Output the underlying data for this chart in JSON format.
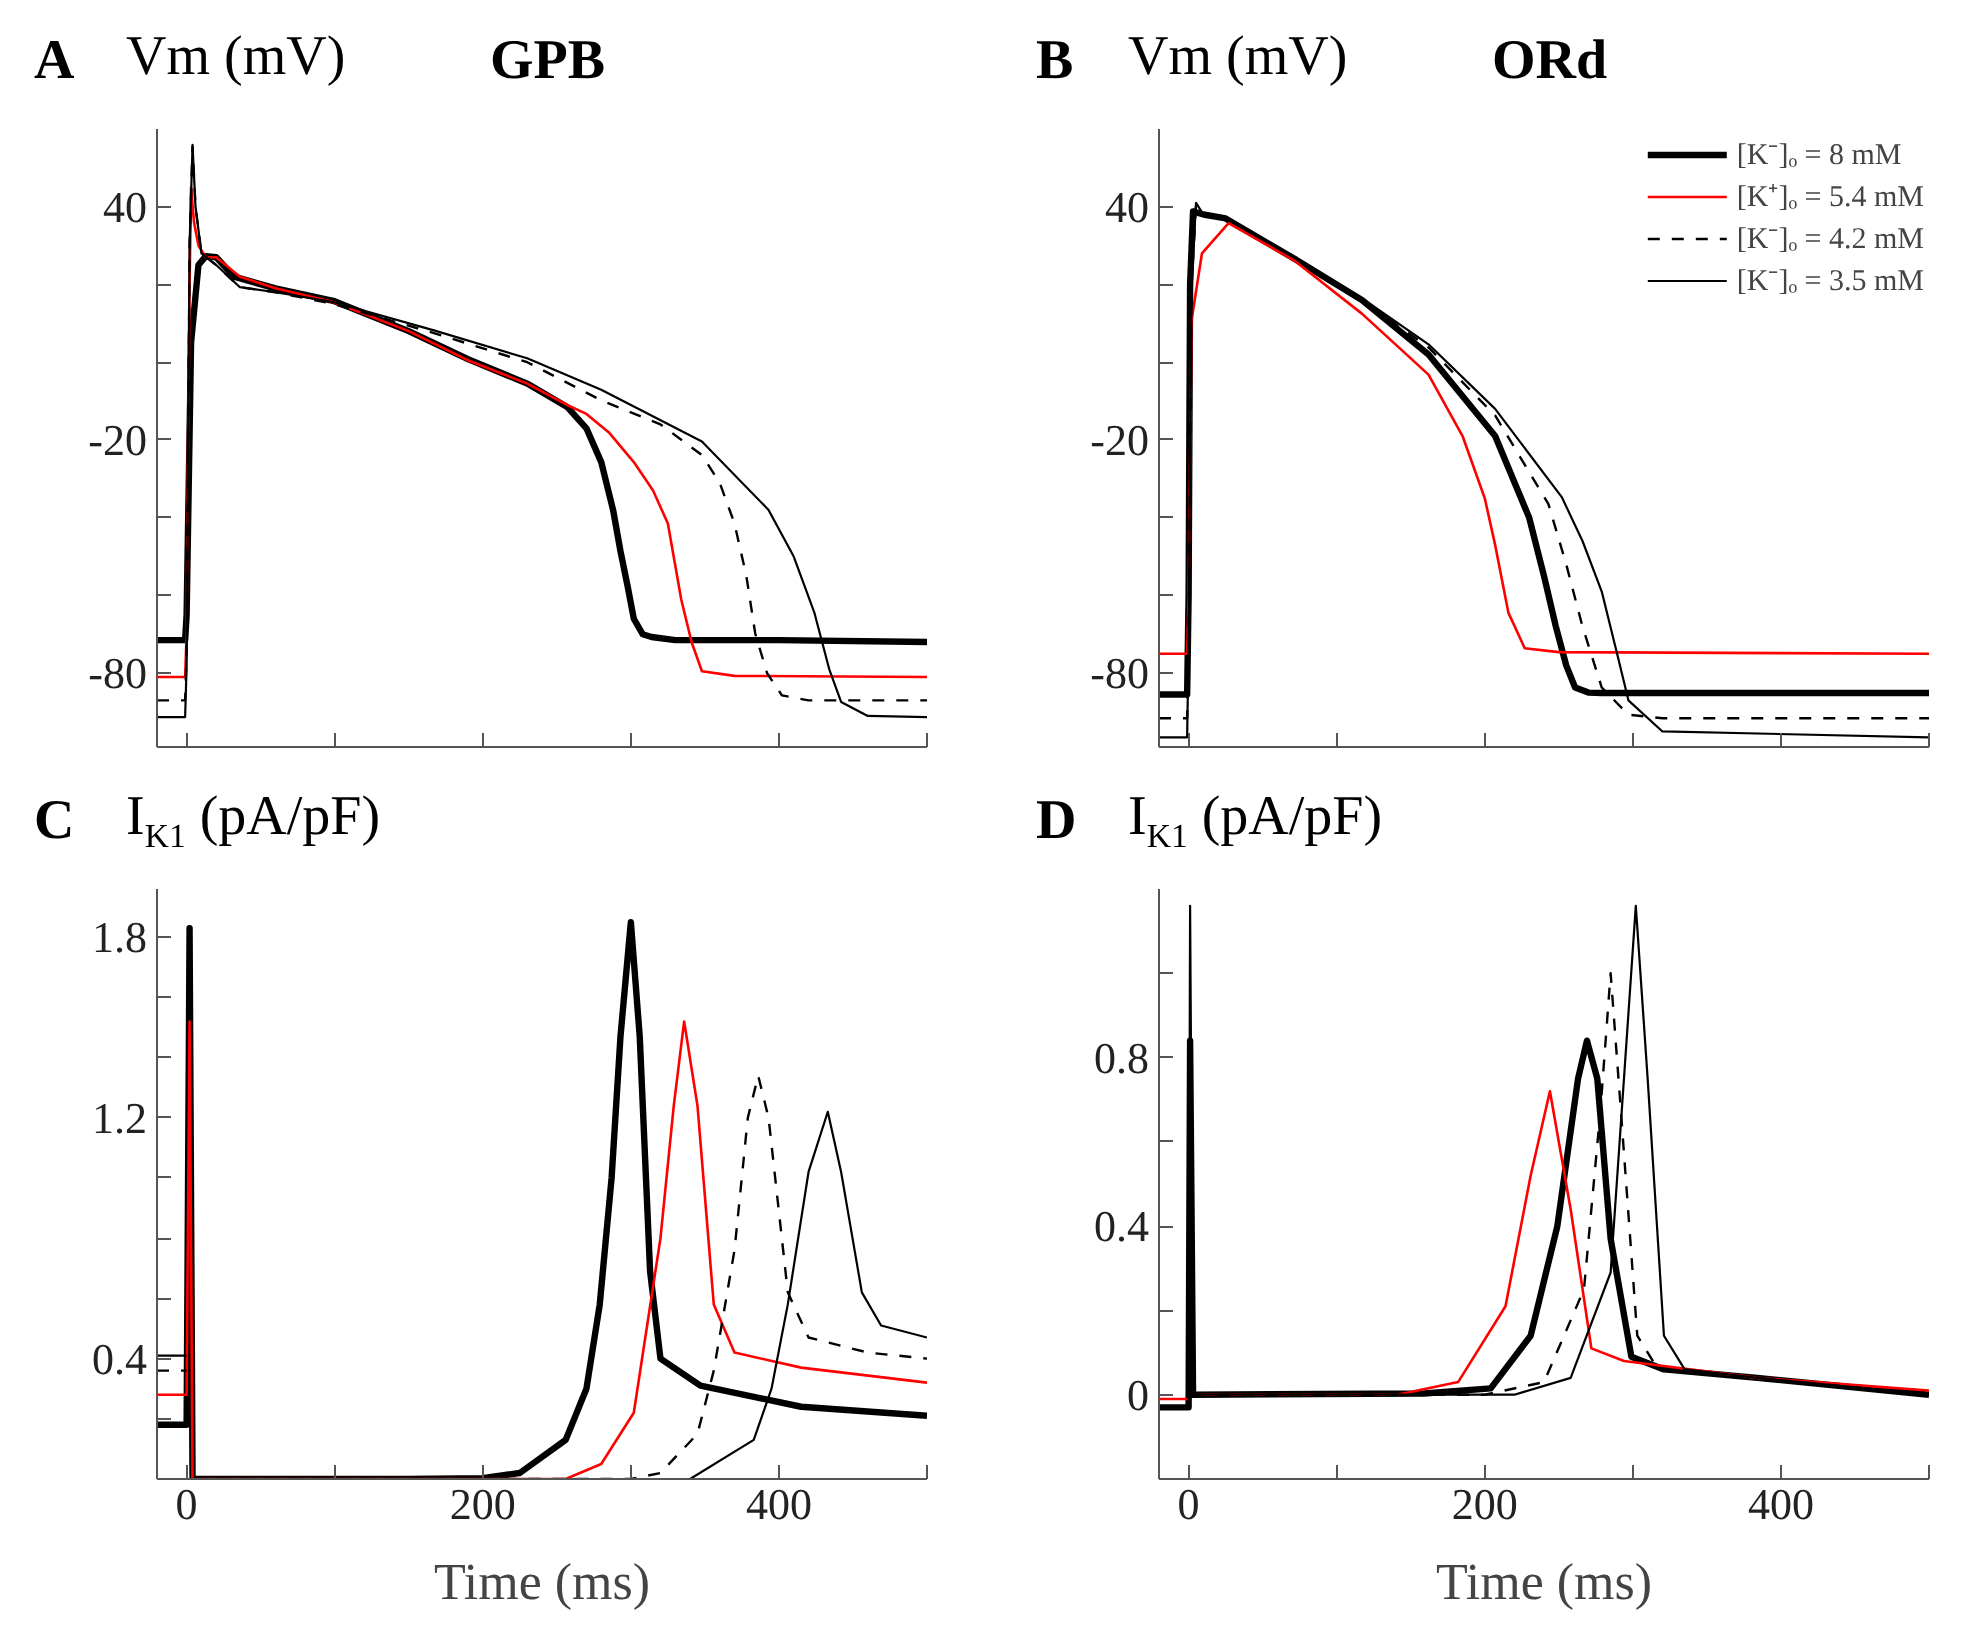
{
  "chart_data": [
    {
      "type": "line",
      "title": "GPB",
      "ylabel": "Vm (mV)",
      "annotations": [
        "A"
      ],
      "xlim": [
        -20,
        500
      ],
      "ylim": [
        -99,
        60
      ],
      "tick_labels": "y",
      "grid": false,
      "legend": false,
      "xticks": [
        {
          "value": 0,
          "label": null
        },
        {
          "value": 100,
          "label": null
        },
        {
          "value": 200,
          "label": null
        },
        {
          "value": 300,
          "label": null
        },
        {
          "value": 400,
          "label": null
        },
        {
          "value": 500,
          "label": null
        }
      ],
      "yticks": [
        -80,
        {
          "value": -60,
          "label": null
        },
        {
          "value": -40,
          "label": null
        },
        -20,
        {
          "value": 0,
          "label": null
        },
        {
          "value": 20,
          "label": null
        },
        40
      ],
      "series": [
        {
          "color": "#000000",
          "line_style": "solid",
          "x": [
            -20,
            -1,
            0,
            3,
            8,
            13,
            20,
            32,
            60,
            99,
            150,
            190,
            230,
            257,
            270,
            280,
            288,
            293,
            298,
            302,
            308,
            314,
            330,
            400,
            500
          ],
          "values": [
            -71.5,
            -71.5,
            -65,
            5,
            25,
            27.3,
            27,
            22,
            19,
            15.8,
            8,
            0.8,
            -5.5,
            -11.5,
            -17,
            -25.7,
            -38,
            -48.6,
            -58,
            -66,
            -70,
            -70.7,
            -71.5,
            -71.5,
            -72
          ]
        },
        {
          "color": "#ff0000",
          "line_style": "solid",
          "x": [
            -20,
            -1,
            0,
            1,
            2,
            3,
            5,
            8,
            13,
            20,
            36,
            60,
            99,
            150,
            190,
            230,
            257,
            270,
            285,
            302,
            315,
            325,
            334,
            341,
            348,
            370,
            500
          ],
          "values": [
            -81,
            -81,
            -70,
            -20,
            20,
            45,
            36,
            30,
            27,
            27,
            22,
            19,
            15.5,
            8,
            0.5,
            -5.5,
            -11,
            -13.3,
            -18,
            -25.7,
            -33,
            -41.5,
            -61,
            -72,
            -79.5,
            -80.7,
            -81
          ]
        },
        {
          "color": "#000000",
          "line_style": "dashed",
          "x": [
            -20,
            -1,
            0,
            2,
            4,
            6,
            10,
            20,
            36,
            60,
            99,
            167,
            230,
            280,
            320,
            348,
            360,
            370,
            378,
            384,
            392,
            402,
            420,
            500
          ],
          "values": [
            -87,
            -87,
            -75,
            30,
            55.5,
            40,
            28,
            25,
            19.3,
            18,
            15,
            7.5,
            0,
            -9.8,
            -16,
            -23.9,
            -31,
            -41.5,
            -55,
            -69.8,
            -80,
            -85.7,
            -87,
            -87
          ]
        },
        {
          "color": "#000000",
          "line_style": "solid",
          "x": [
            -20,
            -1,
            0,
            2,
            4,
            6,
            10,
            20,
            36,
            60,
            99,
            167,
            230,
            280,
            348,
            393,
            410,
            424,
            434,
            442,
            460,
            500
          ],
          "values": [
            -91.3,
            -91.3,
            -78,
            30,
            55.9,
            40,
            28,
            25,
            19.3,
            18,
            15.5,
            8.2,
            1,
            -7.1,
            -20.4,
            -38,
            -50,
            -64.5,
            -79,
            -87.4,
            -91,
            -91.3
          ]
        }
      ]
    },
    {
      "type": "line",
      "title": "ORd",
      "ylabel": "Vm (mV)",
      "annotations": [
        "B"
      ],
      "xlim": [
        -20,
        500
      ],
      "ylim": [
        -99,
        60
      ],
      "tick_labels": "y",
      "grid": false,
      "legend": "top right",
      "xticks": [
        {
          "value": 0,
          "label": null
        },
        {
          "value": 100,
          "label": null
        },
        {
          "value": 200,
          "label": null
        },
        {
          "value": 300,
          "label": null
        },
        {
          "value": 400,
          "label": null
        },
        {
          "value": 500,
          "label": null
        }
      ],
      "yticks": [
        -80,
        {
          "value": -60,
          "label": null
        },
        {
          "value": -40,
          "label": null
        },
        -20,
        {
          "value": 0,
          "label": null
        },
        {
          "value": 20,
          "label": null
        },
        40
      ],
      "series": [
        {
          "name": "[K⁻]ₒ = 8 mM",
          "color": "#000000",
          "line_style": "solid",
          "x": [
            -20,
            -1,
            0,
            1,
            3,
            10,
            25,
            72,
            117,
            162,
            207,
            230,
            240,
            248,
            255,
            261,
            270,
            279,
            500
          ],
          "values": [
            -85.5,
            -85.5,
            -60,
            20,
            38.8,
            38,
            37,
            26.5,
            16,
            2,
            -19,
            -40,
            -55,
            -68,
            -78,
            -83.7,
            -85,
            -85.1,
            -85.1
          ]
        },
        {
          "name": "[K⁺]ₒ = 5.4 mM",
          "color": "#ff0000",
          "line_style": "solid",
          "x": [
            -20,
            -1,
            0,
            2,
            9,
            27,
            72,
            117,
            162,
            185,
            200,
            207,
            216,
            227,
            250,
            500
          ],
          "values": [
            -75,
            -75,
            -60,
            10.8,
            28,
            35.8,
            26,
            12.5,
            -3.2,
            -19,
            -35,
            -47,
            -64.5,
            -73.6,
            -74.6,
            -75
          ]
        },
        {
          "name": "[K⁻]ₒ = 4.2 mM",
          "color": "#000000",
          "line_style": "dashed",
          "x": [
            -20,
            -1,
            0,
            2,
            5,
            10,
            25,
            72,
            117,
            162,
            207,
            243,
            255,
            266,
            279,
            297,
            320,
            500
          ],
          "values": [
            -91.6,
            -91.6,
            -70,
            20,
            40.5,
            38,
            37,
            27,
            16,
            3.8,
            -13.7,
            -36.5,
            -52,
            -68,
            -83.7,
            -90.7,
            -91.6,
            -91.6
          ]
        },
        {
          "name": "[K⁻]ₒ = 3.5 mM",
          "color": "#000000",
          "line_style": "solid",
          "x": [
            -20,
            -1,
            0,
            2,
            5,
            10,
            25,
            72,
            117,
            162,
            207,
            252,
            266,
            279,
            290,
            297,
            320,
            500
          ],
          "values": [
            -96.5,
            -96.5,
            -72,
            20,
            41,
            38,
            37,
            27,
            16.5,
            4.6,
            -12,
            -34.7,
            -46,
            -59,
            -76,
            -87,
            -95,
            -96.5
          ]
        }
      ]
    },
    {
      "type": "line",
      "ylabel": "I$_{K1}$ (pA/pF)",
      "xlabel": "Time (ms)",
      "annotations": [
        "C"
      ],
      "xlim": [
        -20,
        500
      ],
      "ylim": [
        0,
        1.96
      ],
      "grid": false,
      "legend": false,
      "xticks": [
        0,
        {
          "value": 100,
          "label": null
        },
        200,
        {
          "value": 300,
          "label": null
        },
        400,
        {
          "value": 500,
          "label": null
        }
      ],
      "yticks": [
        {
          "value": 0.2,
          "label": null
        },
        0.4,
        {
          "value": 0.6,
          "label": null
        },
        {
          "value": 0.8,
          "label": null
        },
        {
          "value": 1.0,
          "label": null
        },
        1.2,
        {
          "value": 1.4,
          "label": null
        },
        {
          "value": 1.6,
          "label": null
        },
        1.8
      ],
      "series": [
        {
          "color": "#000000",
          "line_style": "solid",
          "x": [
            -20,
            -1,
            0,
            2,
            4,
            150,
            200,
            225,
            256,
            270,
            279,
            287,
            293,
            300,
            306,
            313,
            320,
            347,
            415,
            500
          ],
          "values": [
            0.18,
            0.18,
            0.18,
            1.83,
            0,
            0,
            0.003,
            0.02,
            0.13,
            0.3,
            0.58,
            1.0,
            1.47,
            1.85,
            1.47,
            0.69,
            0.4,
            0.31,
            0.24,
            0.21
          ]
        },
        {
          "color": "#ff0000",
          "line_style": "solid",
          "x": [
            -20,
            -1,
            0,
            2,
            4,
            200,
            256,
            280,
            302,
            320,
            329,
            336,
            345,
            356,
            370,
            415,
            500
          ],
          "values": [
            0.28,
            0.28,
            0.28,
            1.52,
            0,
            0,
            0,
            0.05,
            0.22,
            0.8,
            1.24,
            1.52,
            1.24,
            0.58,
            0.42,
            0.37,
            0.32
          ]
        },
        {
          "color": "#000000",
          "line_style": "dashed",
          "x": [
            -20,
            -1,
            0,
            2,
            4,
            300,
            320,
            345,
            356,
            370,
            379,
            386,
            393,
            406,
            420,
            460,
            500
          ],
          "values": [
            0.36,
            0.36,
            0.36,
            null,
            0,
            0,
            0.02,
            0.15,
            0.36,
            0.76,
            1.2,
            1.34,
            1.2,
            0.62,
            0.47,
            0.42,
            0.4
          ]
        },
        {
          "color": "#000000",
          "line_style": "solid",
          "x": [
            -20,
            -1,
            0,
            2,
            4,
            340,
            383,
            395,
            406,
            420,
            433,
            442,
            456,
            469,
            500
          ],
          "values": [
            0.41,
            0.41,
            0.41,
            null,
            0,
            0,
            0.13,
            0.3,
            0.58,
            1.02,
            1.22,
            1.02,
            0.62,
            0.51,
            0.47
          ]
        }
      ]
    },
    {
      "type": "line",
      "ylabel": "I$_{K1}$ (pA/pF)",
      "xlabel": "Time (ms)",
      "annotations": [
        "D"
      ],
      "xlim": [
        -20,
        500
      ],
      "ylim": [
        -0.2,
        1.2
      ],
      "grid": false,
      "legend": false,
      "xticks": [
        0,
        {
          "value": 100,
          "label": null
        },
        200,
        {
          "value": 300,
          "label": null
        },
        400,
        {
          "value": 500,
          "label": null
        }
      ],
      "yticks": [
        0,
        {
          "value": 0.2,
          "label": null
        },
        0.4,
        {
          "value": 0.6,
          "label": null
        },
        0.8,
        {
          "value": 1.0,
          "label": null
        }
      ],
      "series": [
        {
          "color": "#000000",
          "line_style": "solid",
          "x": [
            -20,
            -1,
            0,
            1,
            3,
            159,
            204,
            231,
            249,
            263,
            269,
            276,
            285,
            299,
            321,
            384,
            500
          ],
          "values": [
            -0.03,
            -0.03,
            -0.03,
            0.84,
            0,
            0.003,
            0.015,
            0.14,
            0.4,
            0.75,
            0.84,
            0.75,
            0.37,
            0.09,
            0.06,
            0.04,
            0.0
          ]
        },
        {
          "color": "#ff0000",
          "line_style": "solid",
          "x": [
            -20,
            -1,
            0,
            1,
            3,
            141,
            182,
            214,
            231,
            244,
            258,
            272,
            294,
            384,
            500
          ],
          "values": [
            -0.01,
            -0.01,
            -0.01,
            null,
            0,
            0,
            0.03,
            0.21,
            0.52,
            0.72,
            0.44,
            0.11,
            0.08,
            0.04,
            0.01
          ]
        },
        {
          "color": "#000000",
          "line_style": "dashed",
          "x": [
            -20,
            -1,
            0,
            1,
            3,
            200,
            240,
            267,
            278,
            285,
            292,
            303,
            317,
            384,
            500
          ],
          "values": [
            -0.03,
            -0.03,
            -0.03,
            null,
            0,
            0,
            0.03,
            0.25,
            0.67,
            1.0,
            0.67,
            0.14,
            0.06,
            0.04,
            0.0
          ]
        },
        {
          "color": "#000000",
          "line_style": "solid",
          "x": [
            -20,
            -1,
            0,
            1,
            3,
            220,
            258,
            285,
            294,
            302,
            310,
            321,
            335,
            384,
            500
          ],
          "values": [
            -0.03,
            -0.03,
            -0.03,
            1.16,
            0,
            0,
            0.04,
            0.29,
            0.75,
            1.16,
            0.75,
            0.14,
            0.06,
            0.04,
            0.0
          ]
        }
      ]
    }
  ]
}
